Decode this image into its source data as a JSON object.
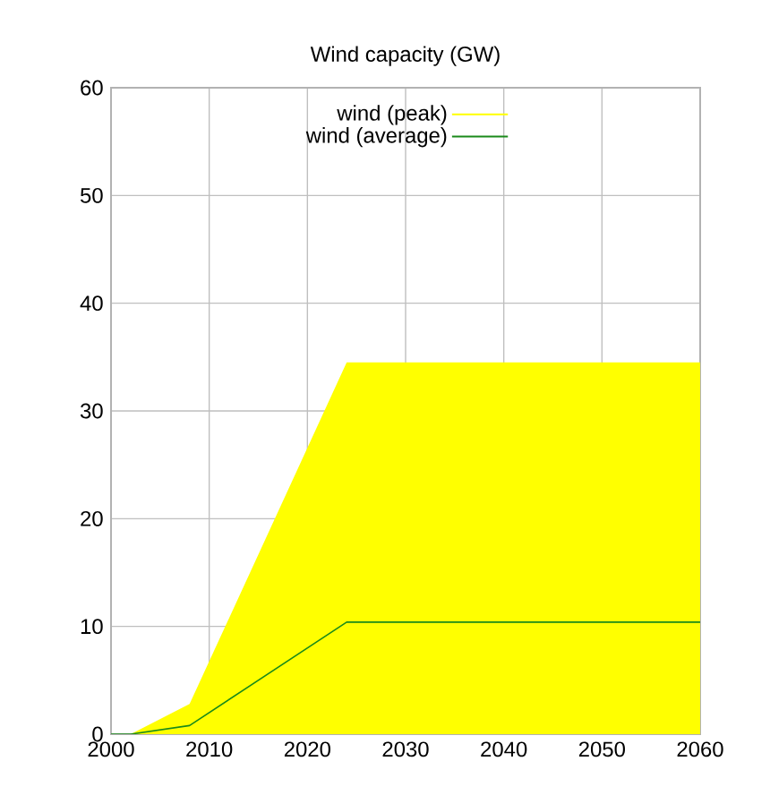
{
  "chart_data": {
    "type": "area",
    "title": "Wind capacity (GW)",
    "x": [
      2000,
      2002,
      2008,
      2024,
      2060
    ],
    "series": [
      {
        "name": "wind (peak)",
        "color": "#ffff00",
        "values": [
          0,
          0,
          2.8,
          34.5,
          34.5
        ]
      },
      {
        "name": "wind (average)",
        "type": "line",
        "color": "#1a8a1a",
        "values": [
          0,
          0,
          0.8,
          10.4,
          10.4
        ]
      }
    ],
    "xlim": [
      2000,
      2060
    ],
    "ylim": [
      0,
      60
    ],
    "xticks": [
      2000,
      2010,
      2020,
      2030,
      2040,
      2050,
      2060
    ],
    "yticks": [
      0,
      10,
      20,
      30,
      40,
      50,
      60
    ],
    "grid": true,
    "legend": "top",
    "marker": "none",
    "line_style": "solid"
  }
}
